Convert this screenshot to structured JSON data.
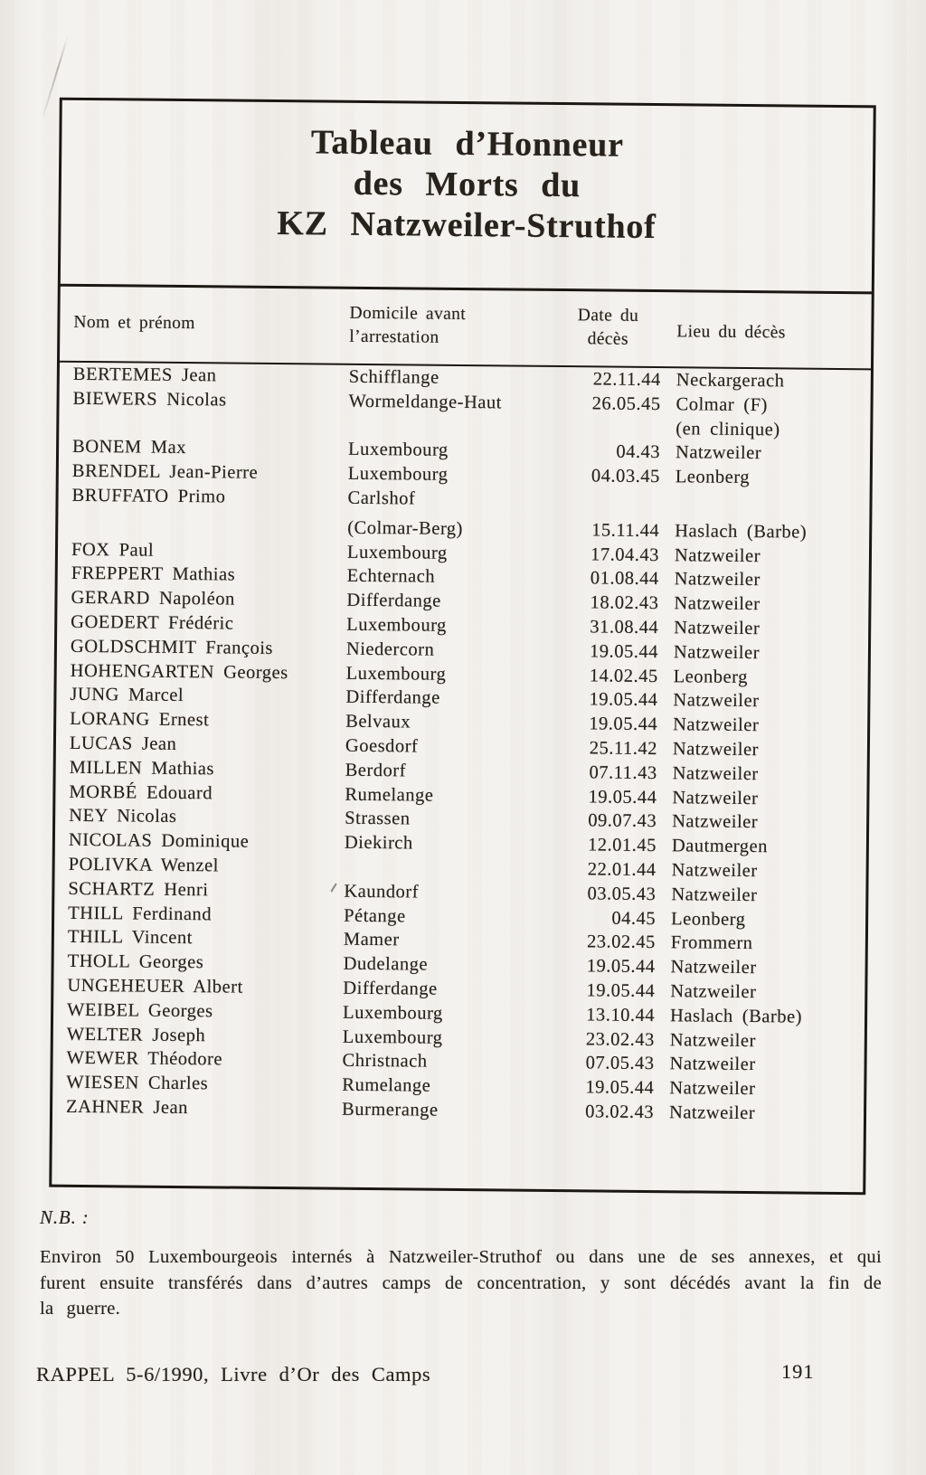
{
  "document": {
    "title_lines": [
      "Tableau d’Honneur",
      "des Morts du",
      "KZ Natzweiler-Struthof"
    ],
    "table": {
      "headers": {
        "name": "Nom et prénom",
        "domicile_line1": "Domicile avant",
        "domicile_line2": "l’arrestation",
        "date_line1": "Date du",
        "date_line2": "décès",
        "lieu": "Lieu du décès"
      },
      "rows": [
        {
          "name": "BERTEMES Jean",
          "domicile": "Schifflange",
          "date": "22.11.44",
          "lieu": "Neckargerach"
        },
        {
          "name": "BIEWERS Nicolas",
          "domicile": "Wormeldange-Haut",
          "date": "26.05.45",
          "lieu": "Colmar (F)"
        },
        {
          "name": "",
          "domicile": "",
          "date": "",
          "lieu": "(en clinique)"
        },
        {
          "name": "BONEM Max",
          "domicile": "Luxembourg",
          "date": "04.43",
          "lieu": "Natzweiler"
        },
        {
          "name": "BRENDEL Jean-Pierre",
          "domicile": "Luxembourg",
          "date": "04.03.45",
          "lieu": "Leonberg"
        },
        {
          "name": "BRUFFATO Primo",
          "domicile": "Carlshof",
          "date": "",
          "lieu": ""
        },
        {
          "name": "",
          "domicile": "(Colmar-Berg)",
          "date": "15.11.44",
          "lieu": "Haslach (Barbe)"
        },
        {
          "name": "FOX Paul",
          "domicile": "Luxembourg",
          "date": "17.04.43",
          "lieu": "Natzweiler"
        },
        {
          "name": "FREPPERT Mathias",
          "domicile": "Echternach",
          "date": "01.08.44",
          "lieu": "Natzweiler"
        },
        {
          "name": "GERARD Napoléon",
          "domicile": "Differdange",
          "date": "18.02.43",
          "lieu": "Natzweiler"
        },
        {
          "name": "GOEDERT Frédéric",
          "domicile": "Luxembourg",
          "date": "31.08.44",
          "lieu": "Natzweiler"
        },
        {
          "name": "GOLDSCHMIT François",
          "domicile": "Niedercorn",
          "date": "19.05.44",
          "lieu": "Natzweiler"
        },
        {
          "name": "HOHENGARTEN Georges",
          "domicile": "Luxembourg",
          "date": "14.02.45",
          "lieu": "Leonberg"
        },
        {
          "name": "JUNG Marcel",
          "domicile": "Differdange",
          "date": "19.05.44",
          "lieu": "Natzweiler"
        },
        {
          "name": "LORANG Ernest",
          "domicile": "Belvaux",
          "date": "19.05.44",
          "lieu": "Natzweiler"
        },
        {
          "name": "LUCAS Jean",
          "domicile": "Goesdorf",
          "date": "25.11.42",
          "lieu": "Natzweiler"
        },
        {
          "name": "MILLEN Mathias",
          "domicile": "Berdorf",
          "date": "07.11.43",
          "lieu": "Natzweiler"
        },
        {
          "name": "MORBÉ Edouard",
          "domicile": "Rumelange",
          "date": "19.05.44",
          "lieu": "Natzweiler"
        },
        {
          "name": "NEY Nicolas",
          "domicile": "Strassen",
          "date": "09.07.43",
          "lieu": "Natzweiler"
        },
        {
          "name": "NICOLAS Dominique",
          "domicile": "Diekirch",
          "date": "12.01.45",
          "lieu": "Dautmergen"
        },
        {
          "name": "POLIVKA Wenzel",
          "domicile": "",
          "date": "22.01.44",
          "lieu": "Natzweiler"
        },
        {
          "name": "SCHARTZ Henri",
          "domicile": "Kaundorf",
          "date": "03.05.43",
          "lieu": "Natzweiler"
        },
        {
          "name": "THILL Ferdinand",
          "domicile": "Pétange",
          "date": "04.45",
          "lieu": "Leonberg"
        },
        {
          "name": "THILL Vincent",
          "domicile": "Mamer",
          "date": "23.02.45",
          "lieu": "Frommern"
        },
        {
          "name": "THOLL Georges",
          "domicile": "Dudelange",
          "date": "19.05.44",
          "lieu": "Natzweiler"
        },
        {
          "name": "UNGEHEUER Albert",
          "domicile": "Differdange",
          "date": "19.05.44",
          "lieu": "Natzweiler"
        },
        {
          "name": "WEIBEL Georges",
          "domicile": "Luxembourg",
          "date": "13.10.44",
          "lieu": "Haslach (Barbe)"
        },
        {
          "name": "WELTER Joseph",
          "domicile": "Luxembourg",
          "date": "23.02.43",
          "lieu": "Natzweiler"
        },
        {
          "name": "WEWER Théodore",
          "domicile": "Christnach",
          "date": "07.05.43",
          "lieu": "Natzweiler"
        },
        {
          "name": "WIESEN Charles",
          "domicile": "Rumelange",
          "date": "19.05.44",
          "lieu": "Natzweiler"
        },
        {
          "name": "ZAHNER Jean",
          "domicile": "Burmerange",
          "date": "03.02.43",
          "lieu": "Natzweiler"
        }
      ]
    },
    "note": {
      "label": "N.B. :",
      "text": "Environ 50 Luxembourgeois internés à Natzweiler-Struthof ou dans une de ses annexes, et qui furent ensuite transférés dans d’autres camps de concentration, y sont décédés avant la fin de la guerre."
    },
    "footer": {
      "source": "RAPPEL 5-6/1990, Livre d’Or des Camps",
      "page_number": "191"
    },
    "colors": {
      "paper": "#f4f2ee",
      "ink": "#27221b",
      "border": "#1b1712"
    }
  }
}
